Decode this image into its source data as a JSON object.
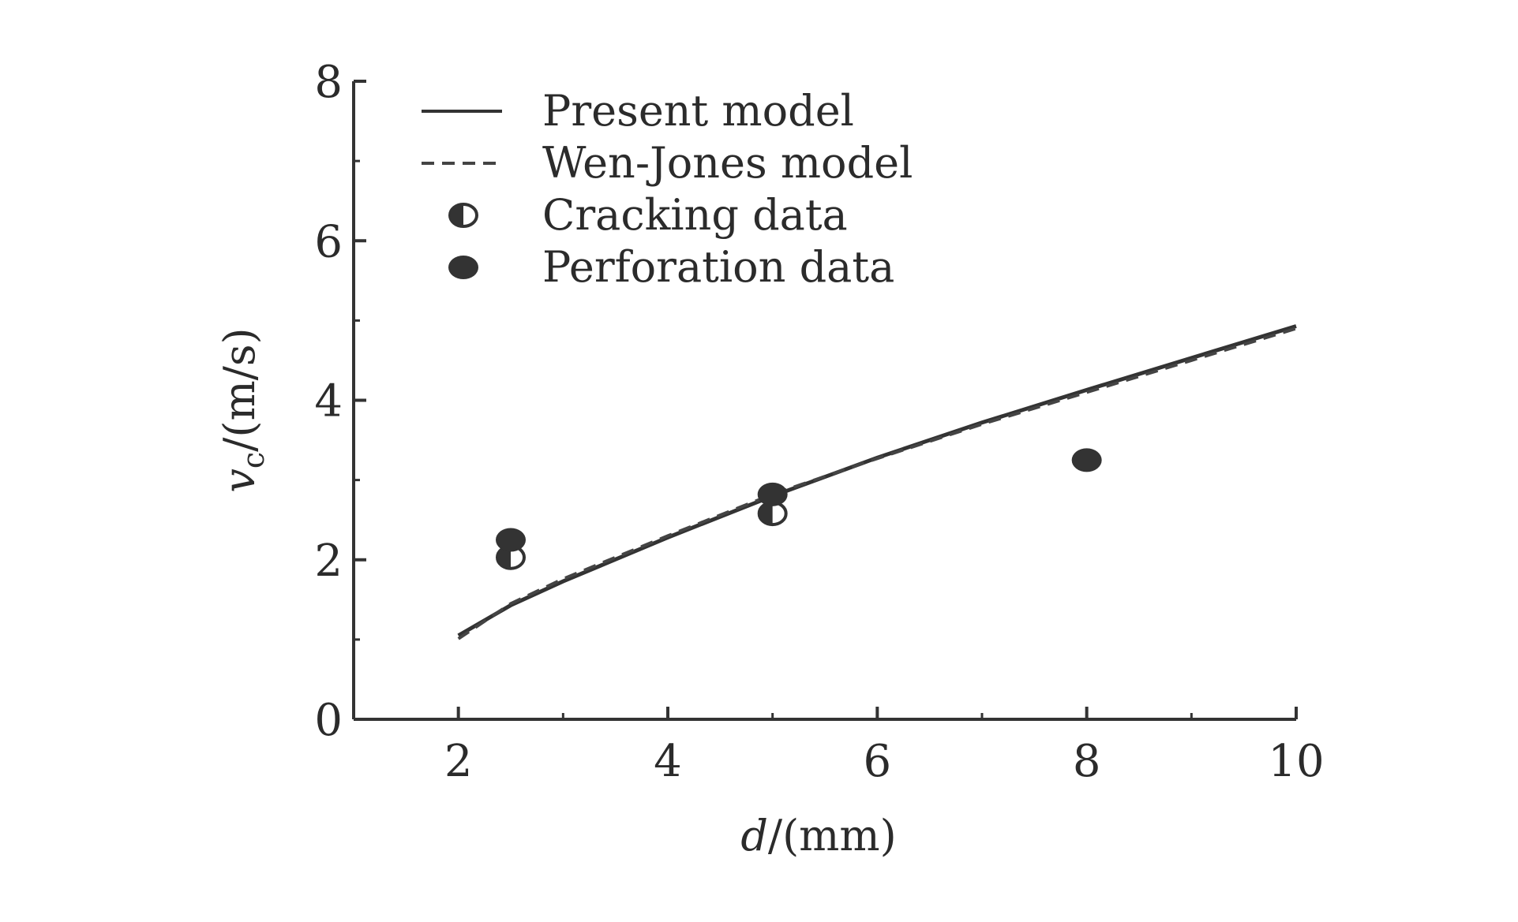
{
  "chart_data": {
    "type": "scatter",
    "title": "",
    "xlabel": {
      "var": "d",
      "unit": "/(mm)"
    },
    "ylabel": {
      "var": "v",
      "subscript": "c",
      "unit": "/(m/s)"
    },
    "xlim": [
      1,
      10
    ],
    "ylim": [
      0,
      8
    ],
    "x_ticks": [
      2,
      4,
      6,
      8,
      10
    ],
    "y_ticks": [
      0,
      2,
      4,
      6,
      8
    ],
    "x_minor_ticks": [
      3,
      5,
      7,
      9
    ],
    "y_minor_ticks": [
      1,
      3,
      5,
      7
    ],
    "grid": false,
    "legend_position": "top-left",
    "series": [
      {
        "name": "Present model",
        "kind": "line",
        "style": "solid",
        "color": "#333333",
        "x": [
          2.0,
          2.5,
          3.0,
          4.0,
          5.0,
          6.0,
          7.0,
          8.0,
          9.0,
          10.0
        ],
        "y": [
          1.05,
          1.43,
          1.73,
          2.28,
          2.8,
          3.28,
          3.72,
          4.13,
          4.53,
          4.93
        ]
      },
      {
        "name": "Wen-Jones model",
        "kind": "line",
        "style": "dashed",
        "color": "#444444",
        "x": [
          2.0,
          2.5,
          3.0,
          4.0,
          5.0,
          6.0,
          7.0,
          8.0,
          9.0,
          10.0
        ],
        "y": [
          1.01,
          1.45,
          1.76,
          2.3,
          2.82,
          3.27,
          3.7,
          4.1,
          4.5,
          4.9
        ]
      },
      {
        "name": "Cracking data",
        "kind": "marker",
        "marker": "half-filled-circle",
        "color": "#333333",
        "x": [
          2.5,
          5.0
        ],
        "y": [
          2.03,
          2.58
        ]
      },
      {
        "name": "Perforation data",
        "kind": "marker",
        "marker": "filled-circle",
        "color": "#333333",
        "x": [
          2.5,
          5.0,
          8.0
        ],
        "y": [
          2.25,
          2.82,
          3.25
        ]
      }
    ]
  }
}
